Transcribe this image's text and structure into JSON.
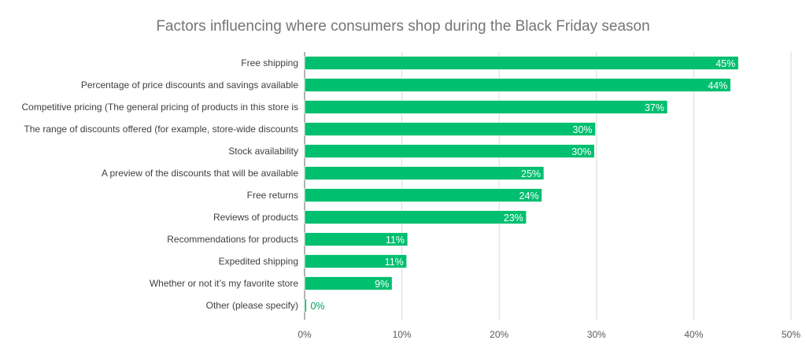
{
  "chart_data": {
    "type": "bar",
    "orientation": "horizontal",
    "title": "Factors influencing where consumers shop during the Black Friday season",
    "xlabel": "",
    "ylabel": "",
    "categories": [
      "Free shipping",
      "Percentage of price discounts and savings available",
      "Competitive pricing (The general pricing of products in this store is",
      "The range of discounts offered (for example, store-wide discounts",
      "Stock availability",
      "A preview of the discounts that will be available",
      "Free returns",
      "Reviews of products",
      "Recommendations for products",
      "Expedited shipping",
      "Whether or not it’s my favorite store",
      "Other (please specify)"
    ],
    "values": [
      44.6,
      43.8,
      37.3,
      29.9,
      29.8,
      24.6,
      24.4,
      22.8,
      10.6,
      10.5,
      9.0,
      0.2
    ],
    "data_labels": [
      "45%",
      "44%",
      "37%",
      "30%",
      "30%",
      "25%",
      "24%",
      "23%",
      "11%",
      "11%",
      "9%",
      "0%"
    ],
    "xlim": [
      0,
      50
    ],
    "xticks": [
      "0%",
      "10%",
      "20%",
      "30%",
      "40%",
      "50%"
    ],
    "grid": true,
    "legend": "none",
    "color": "#00BF6F"
  }
}
